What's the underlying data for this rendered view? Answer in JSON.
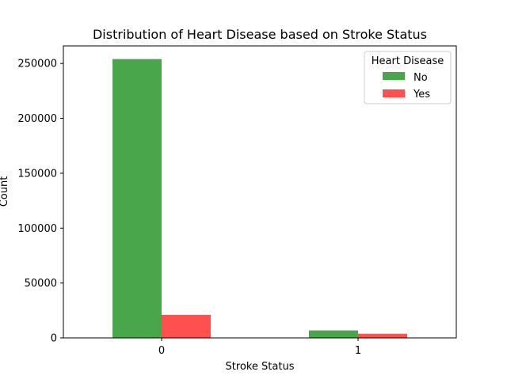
{
  "chart_data": {
    "type": "bar",
    "title": "Distribution of Heart Disease based on Stroke Status",
    "xlabel": "Stroke Status",
    "ylabel": "Count",
    "categories": [
      "0",
      "1"
    ],
    "series": [
      {
        "name": "No",
        "values": [
          254000,
          6800
        ],
        "color": "#4aa64a"
      },
      {
        "name": "Yes",
        "values": [
          21000,
          3800
        ],
        "color": "#ff5050"
      }
    ],
    "ylim": [
      0,
      266000
    ],
    "yticks": [
      0,
      50000,
      100000,
      150000,
      200000,
      250000
    ],
    "legend": {
      "title": "Heart Disease",
      "placement": "top-right"
    },
    "grid": false
  }
}
